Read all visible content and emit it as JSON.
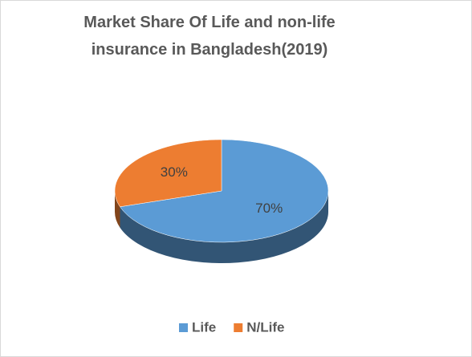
{
  "chart_data": {
    "type": "pie",
    "title": "Market Share Of Life and non-life insurance in Bangladesh(2019)",
    "categories": [
      "Life",
      "N/Life"
    ],
    "values": [
      70,
      30
    ],
    "value_labels": [
      "70%",
      "30%"
    ],
    "colors": [
      "#5b9bd5",
      "#ed7d31"
    ],
    "legend": "bottom"
  }
}
